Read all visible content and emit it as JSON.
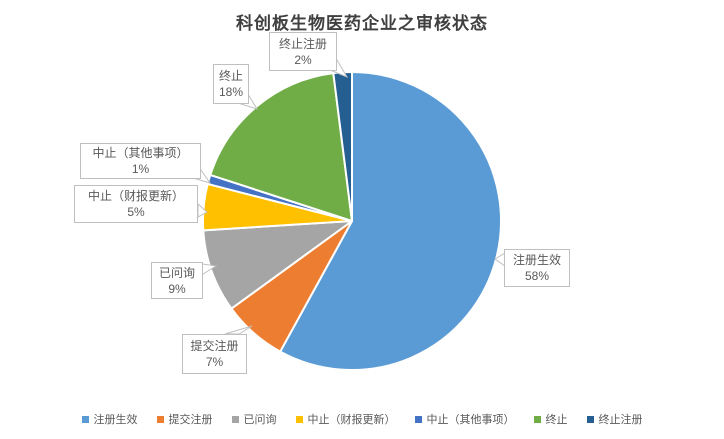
{
  "title": "科创板生物医药企业之审核状态",
  "chart_data": {
    "type": "pie",
    "title": "科创板生物医药企业之审核状态",
    "categories": [
      "注册生效",
      "提交注册",
      "已问询",
      "中止（财报更新）",
      "中止（其他事项）",
      "终止",
      "终止注册"
    ],
    "values": [
      58,
      7,
      9,
      5,
      1,
      18,
      2
    ],
    "value_unit": "%",
    "display_values": [
      "58%",
      "7%",
      "9%",
      "5%",
      "1%",
      "18%",
      "2%"
    ],
    "colors": [
      "#5B9BD5",
      "#ED7D31",
      "#A5A5A5",
      "#FFC000",
      "#4472C4",
      "#70AD47",
      "#255E91"
    ],
    "start_angle_deg": 0,
    "direction": "clockwise",
    "data_label_style": "callout boxes with category name and percent",
    "legend_position": "bottom",
    "grid": false
  },
  "callouts": [
    {
      "name": "注册生效",
      "value": "58%"
    },
    {
      "name": "提交注册",
      "value": "7%"
    },
    {
      "name": "已问询",
      "value": "9%"
    },
    {
      "name": "中止（财报更新）",
      "value": "5%"
    },
    {
      "name": "中止（其他事项）",
      "value": "1%"
    },
    {
      "name": "终止",
      "value": "18%"
    },
    {
      "name": "终止注册",
      "value": "2%"
    }
  ],
  "legend": {
    "items": [
      {
        "label": "注册生效",
        "color": "#5B9BD5"
      },
      {
        "label": "提交注册",
        "color": "#ED7D31"
      },
      {
        "label": "已问询",
        "color": "#A5A5A5"
      },
      {
        "label": "中止（财报更新）",
        "color": "#FFC000"
      },
      {
        "label": "中止（其他事项）",
        "color": "#4472C4"
      },
      {
        "label": "终止",
        "color": "#70AD47"
      },
      {
        "label": "终止注册",
        "color": "#255E91"
      }
    ]
  },
  "style": {
    "label_border_color": "#BFBFBF",
    "label_text_color": "#595959",
    "title_color": "#404040",
    "background": "#FFFFFF"
  }
}
